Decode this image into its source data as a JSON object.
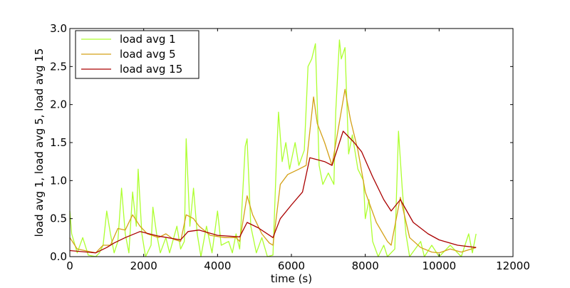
{
  "chart_data": {
    "type": "line",
    "title": "",
    "xlabel": "time (s)",
    "ylabel": "load avg 1, load avg 5, load avg 15",
    "xlim": [
      0,
      12000
    ],
    "ylim": [
      0,
      3.0
    ],
    "xticks": [
      0,
      2000,
      4000,
      6000,
      8000,
      10000,
      12000
    ],
    "xtick_labels": [
      "0",
      "2000",
      "4000",
      "6000",
      "8000",
      "10000",
      "12000"
    ],
    "yticks": [
      0,
      0.5,
      1.0,
      1.5,
      2.0,
      2.5,
      3.0
    ],
    "ytick_labels": [
      "0.0",
      "0.5",
      "1.0",
      "1.5",
      "2.0",
      "2.5",
      "3.0"
    ],
    "grid": false,
    "legend_position": "top-left",
    "series": [
      {
        "name": "load avg 1",
        "color": "#adff2f",
        "points": [
          [
            0,
            0.6
          ],
          [
            50,
            0.3
          ],
          [
            200,
            0.05
          ],
          [
            350,
            0.25
          ],
          [
            500,
            0.02
          ],
          [
            700,
            0.0
          ],
          [
            800,
            0.05
          ],
          [
            900,
            0.15
          ],
          [
            1000,
            0.6
          ],
          [
            1100,
            0.3
          ],
          [
            1200,
            0.05
          ],
          [
            1300,
            0.2
          ],
          [
            1400,
            0.9
          ],
          [
            1500,
            0.3
          ],
          [
            1600,
            0.05
          ],
          [
            1700,
            0.85
          ],
          [
            1800,
            0.4
          ],
          [
            1850,
            1.15
          ],
          [
            1950,
            0.3
          ],
          [
            2050,
            0.0
          ],
          [
            2200,
            0.15
          ],
          [
            2250,
            0.65
          ],
          [
            2350,
            0.3
          ],
          [
            2450,
            0.05
          ],
          [
            2600,
            0.25
          ],
          [
            2700,
            0.05
          ],
          [
            2900,
            0.4
          ],
          [
            3000,
            0.1
          ],
          [
            3100,
            0.2
          ],
          [
            3150,
            1.55
          ],
          [
            3250,
            0.4
          ],
          [
            3350,
            0.9
          ],
          [
            3450,
            0.3
          ],
          [
            3550,
            0.0
          ],
          [
            3700,
            0.4
          ],
          [
            3850,
            0.05
          ],
          [
            4000,
            0.6
          ],
          [
            4100,
            0.15
          ],
          [
            4300,
            0.2
          ],
          [
            4400,
            0.05
          ],
          [
            4500,
            0.3
          ],
          [
            4600,
            0.1
          ],
          [
            4750,
            1.45
          ],
          [
            4800,
            1.55
          ],
          [
            4900,
            0.4
          ],
          [
            5050,
            0.05
          ],
          [
            5200,
            0.25
          ],
          [
            5350,
            0.0
          ],
          [
            5500,
            0.02
          ],
          [
            5600,
            1.35
          ],
          [
            5650,
            1.9
          ],
          [
            5750,
            1.25
          ],
          [
            5850,
            1.5
          ],
          [
            5950,
            1.15
          ],
          [
            6100,
            1.5
          ],
          [
            6200,
            1.2
          ],
          [
            6350,
            1.4
          ],
          [
            6450,
            2.5
          ],
          [
            6550,
            2.6
          ],
          [
            6650,
            2.8
          ],
          [
            6750,
            1.2
          ],
          [
            6850,
            0.95
          ],
          [
            7000,
            1.1
          ],
          [
            7150,
            0.95
          ],
          [
            7200,
            1.9
          ],
          [
            7300,
            2.85
          ],
          [
            7350,
            2.6
          ],
          [
            7450,
            2.75
          ],
          [
            7550,
            1.35
          ],
          [
            7650,
            1.6
          ],
          [
            7800,
            1.15
          ],
          [
            7950,
            1.0
          ],
          [
            8000,
            0.5
          ],
          [
            8100,
            0.75
          ],
          [
            8200,
            0.2
          ],
          [
            8350,
            0.0
          ],
          [
            8500,
            0.15
          ],
          [
            8600,
            0.0
          ],
          [
            8800,
            0.1
          ],
          [
            8900,
            1.65
          ],
          [
            9000,
            0.9
          ],
          [
            9100,
            0.3
          ],
          [
            9200,
            0.0
          ],
          [
            9500,
            0.2
          ],
          [
            9600,
            0.0
          ],
          [
            9800,
            0.15
          ],
          [
            10000,
            0.0
          ],
          [
            10300,
            0.15
          ],
          [
            10600,
            0.0
          ],
          [
            10800,
            0.3
          ],
          [
            10900,
            0.05
          ],
          [
            11000,
            0.3
          ]
        ]
      },
      {
        "name": "load avg 5",
        "color": "#d4a017",
        "points": [
          [
            0,
            0.25
          ],
          [
            200,
            0.1
          ],
          [
            700,
            0.05
          ],
          [
            900,
            0.15
          ],
          [
            1100,
            0.15
          ],
          [
            1300,
            0.37
          ],
          [
            1500,
            0.35
          ],
          [
            1700,
            0.55
          ],
          [
            1900,
            0.4
          ],
          [
            2100,
            0.3
          ],
          [
            2400,
            0.25
          ],
          [
            2600,
            0.3
          ],
          [
            2800,
            0.23
          ],
          [
            3000,
            0.2
          ],
          [
            3150,
            0.55
          ],
          [
            3350,
            0.5
          ],
          [
            3500,
            0.4
          ],
          [
            3800,
            0.28
          ],
          [
            4200,
            0.25
          ],
          [
            4500,
            0.25
          ],
          [
            4600,
            0.2
          ],
          [
            4800,
            0.8
          ],
          [
            4950,
            0.55
          ],
          [
            5200,
            0.3
          ],
          [
            5400,
            0.18
          ],
          [
            5500,
            0.15
          ],
          [
            5700,
            0.95
          ],
          [
            5900,
            1.08
          ],
          [
            6200,
            1.15
          ],
          [
            6400,
            1.2
          ],
          [
            6600,
            2.1
          ],
          [
            6700,
            1.75
          ],
          [
            6900,
            1.5
          ],
          [
            7100,
            1.2
          ],
          [
            7450,
            2.2
          ],
          [
            7600,
            1.8
          ],
          [
            7800,
            1.4
          ],
          [
            8000,
            0.85
          ],
          [
            8300,
            0.45
          ],
          [
            8600,
            0.2
          ],
          [
            8700,
            0.15
          ],
          [
            8950,
            0.78
          ],
          [
            9200,
            0.25
          ],
          [
            9500,
            0.12
          ],
          [
            9800,
            0.06
          ],
          [
            10000,
            0.05
          ],
          [
            10300,
            0.1
          ],
          [
            10600,
            0.06
          ],
          [
            11000,
            0.12
          ]
        ]
      },
      {
        "name": "load avg 15",
        "color": "#aa0000",
        "points": [
          [
            0,
            0.08
          ],
          [
            700,
            0.05
          ],
          [
            1000,
            0.12
          ],
          [
            1200,
            0.18
          ],
          [
            1500,
            0.25
          ],
          [
            1900,
            0.33
          ],
          [
            2400,
            0.27
          ],
          [
            3000,
            0.22
          ],
          [
            3200,
            0.33
          ],
          [
            3500,
            0.35
          ],
          [
            4000,
            0.28
          ],
          [
            4600,
            0.26
          ],
          [
            4800,
            0.45
          ],
          [
            5100,
            0.38
          ],
          [
            5500,
            0.25
          ],
          [
            5700,
            0.5
          ],
          [
            6000,
            0.68
          ],
          [
            6300,
            0.85
          ],
          [
            6500,
            1.3
          ],
          [
            6900,
            1.25
          ],
          [
            7100,
            1.2
          ],
          [
            7400,
            1.65
          ],
          [
            7700,
            1.5
          ],
          [
            7900,
            1.38
          ],
          [
            8200,
            1.05
          ],
          [
            8500,
            0.75
          ],
          [
            8700,
            0.6
          ],
          [
            8950,
            0.75
          ],
          [
            9300,
            0.45
          ],
          [
            9700,
            0.3
          ],
          [
            10000,
            0.22
          ],
          [
            10500,
            0.15
          ],
          [
            11000,
            0.12
          ]
        ]
      }
    ]
  }
}
